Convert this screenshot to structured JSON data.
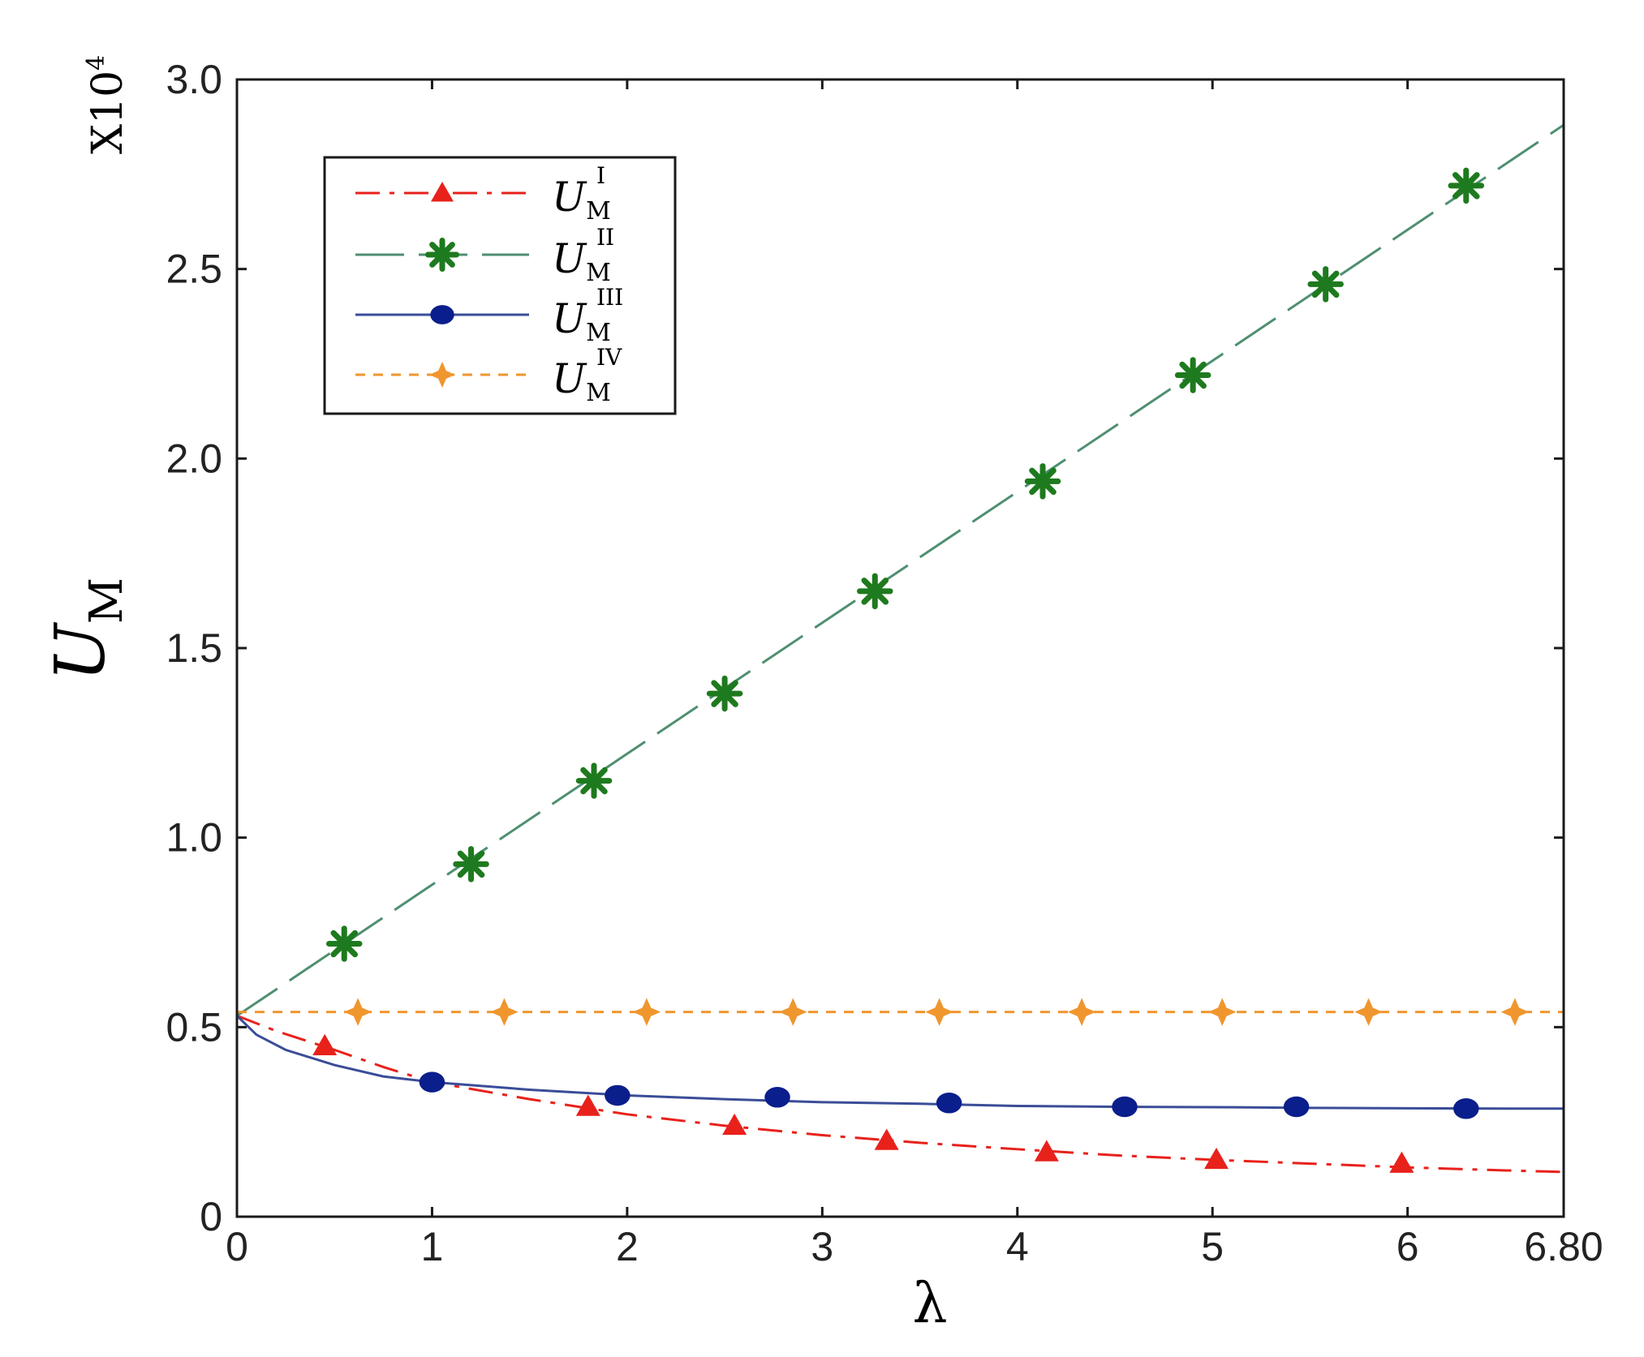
{
  "chart_data": {
    "type": "line",
    "xlabel": "λ",
    "ylabel": {
      "main": "U",
      "sub": "M"
    },
    "y_multiplier": {
      "base": "X10",
      "exp": "4"
    },
    "xlim": [
      0,
      6.8
    ],
    "ylim": [
      0,
      3.0
    ],
    "x_ticks": [
      0,
      1,
      2,
      3,
      4,
      5,
      6,
      6.8
    ],
    "x_tick_labels": [
      "0",
      "1",
      "2",
      "3",
      "4",
      "5",
      "6",
      "6.80"
    ],
    "y_ticks": [
      0,
      0.5,
      1.0,
      1.5,
      2.0,
      2.5,
      3.0
    ],
    "y_tick_labels": [
      "0",
      "0.5",
      "1.0",
      "1.5",
      "2.0",
      "2.5",
      "3.0"
    ],
    "grid": false,
    "legend_position": "top-left",
    "series": [
      {
        "name": "U_M^I",
        "label_main": "U",
        "label_sub": "M",
        "label_sup": "I",
        "color": "#e8211b",
        "marker": "triangle",
        "line_style": "dashdot",
        "line_x": [
          0,
          0.1,
          0.2,
          0.35,
          0.5,
          0.75,
          1.0,
          1.5,
          2.0,
          2.5,
          3.0,
          3.5,
          4.0,
          4.5,
          5.0,
          5.5,
          6.0,
          6.5,
          6.8
        ],
        "line_y": [
          0.53,
          0.51,
          0.49,
          0.465,
          0.44,
          0.395,
          0.355,
          0.31,
          0.27,
          0.24,
          0.215,
          0.195,
          0.178,
          0.162,
          0.15,
          0.14,
          0.13,
          0.122,
          0.118
        ],
        "marker_x": [
          0.45,
          1.8,
          2.55,
          3.33,
          4.15,
          5.02,
          5.97
        ],
        "marker_y": [
          0.45,
          0.29,
          0.24,
          0.2,
          0.17,
          0.15,
          0.14
        ]
      },
      {
        "name": "U_M^II",
        "label_main": "U",
        "label_sub": "M",
        "label_sup": "II",
        "color": "#1e7a1e",
        "line_color": "#4e8f70",
        "marker": "star",
        "line_style": "longdash",
        "line_x": [
          0,
          6.8
        ],
        "line_y": [
          0.53,
          2.88
        ],
        "marker_x": [
          0.55,
          1.2,
          1.83,
          2.5,
          3.27,
          4.13,
          4.9,
          5.58,
          6.3
        ],
        "marker_y": [
          0.72,
          0.93,
          1.15,
          1.38,
          1.65,
          1.94,
          2.22,
          2.46,
          2.72
        ]
      },
      {
        "name": "U_M^III",
        "label_main": "U",
        "label_sub": "M",
        "label_sup": "III",
        "color": "#0a1e8c",
        "line_color": "#3a4d98",
        "marker": "circle",
        "line_style": "solid",
        "line_x": [
          0,
          0.1,
          0.25,
          0.5,
          0.75,
          1.0,
          1.5,
          2.0,
          2.5,
          3.0,
          3.5,
          4.0,
          4.5,
          5.0,
          5.5,
          6.0,
          6.5,
          6.8
        ],
        "line_y": [
          0.53,
          0.48,
          0.44,
          0.4,
          0.37,
          0.355,
          0.335,
          0.32,
          0.31,
          0.302,
          0.298,
          0.292,
          0.29,
          0.289,
          0.287,
          0.286,
          0.285,
          0.285
        ],
        "marker_x": [
          1.0,
          1.95,
          2.77,
          3.65,
          4.55,
          5.43,
          6.3
        ],
        "marker_y": [
          0.355,
          0.32,
          0.315,
          0.3,
          0.29,
          0.29,
          0.285
        ]
      },
      {
        "name": "U_M^IV",
        "label_main": "U",
        "label_sub": "M",
        "label_sup": "IV",
        "color": "#f0962e",
        "marker": "diamond4",
        "line_style": "dashed",
        "line_x": [
          0,
          6.8
        ],
        "line_y": [
          0.54,
          0.54
        ],
        "marker_x": [
          0.62,
          1.37,
          2.1,
          2.85,
          3.6,
          4.33,
          5.05,
          5.8,
          6.55
        ],
        "marker_y": [
          0.54,
          0.54,
          0.54,
          0.54,
          0.54,
          0.54,
          0.54,
          0.54,
          0.54
        ]
      }
    ]
  }
}
